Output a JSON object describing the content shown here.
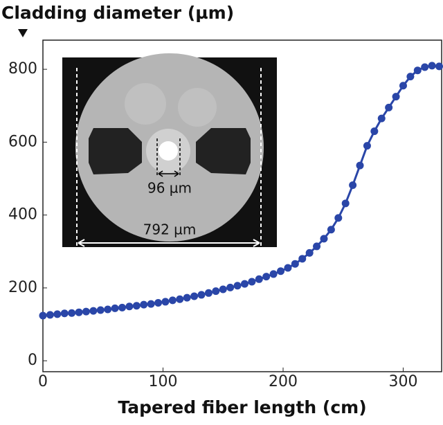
{
  "chart_data": {
    "type": "line",
    "ylabel": "Cladding diameter (µm)",
    "xlabel": "Tapered fiber length (cm)",
    "annotations": [
      "96 µm",
      "792 µm"
    ],
    "x": [
      0,
      6,
      12,
      18,
      24,
      30,
      36,
      42,
      48,
      54,
      60,
      66,
      72,
      78,
      84,
      90,
      96,
      102,
      108,
      114,
      120,
      126,
      132,
      138,
      144,
      150,
      156,
      162,
      168,
      174,
      180,
      186,
      192,
      198,
      204,
      210,
      216,
      222,
      228,
      234,
      240,
      246,
      252,
      258,
      264,
      270,
      276,
      282,
      288,
      294,
      300,
      306,
      312,
      318,
      324,
      330
    ],
    "series": [
      {
        "name": "Cladding diameter",
        "color": "#2a46a8",
        "values": [
          124,
          126,
          128,
          130,
          131,
          133,
          135,
          137,
          139,
          141,
          144,
          146,
          149,
          151,
          154,
          156,
          159,
          162,
          166,
          169,
          173,
          177,
          181,
          186,
          191,
          196,
          201,
          206,
          211,
          217,
          224,
          231,
          238,
          246,
          255,
          266,
          280,
          296,
          314,
          335,
          360,
          392,
          432,
          482,
          536,
          590,
          630,
          665,
          695,
          725,
          755,
          780,
          797,
          806,
          810,
          808
        ]
      }
    ],
    "xlim": [
      0,
      332
    ],
    "xticks": [
      0,
      100,
      200,
      300
    ],
    "ylim": [
      -30,
      880
    ],
    "yticks": [
      0,
      200,
      400,
      600,
      800
    ]
  }
}
